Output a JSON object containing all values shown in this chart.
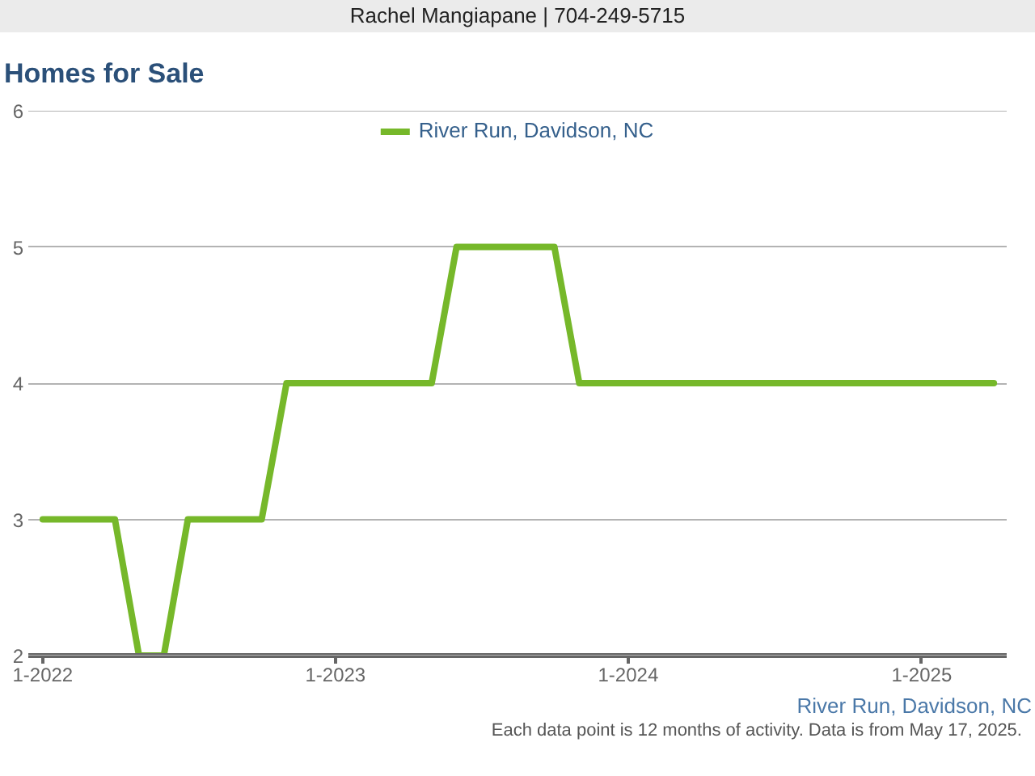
{
  "chart_data": {
    "type": "line",
    "title": "Homes for Sale",
    "annotations": [
      "Rachel Mangiapane | 704-249-5715",
      "River Run, Davidson, NC",
      "Each data point is 12 months of activity. Data is from May 17, 2025."
    ],
    "x": [
      "2022-01",
      "2022-02",
      "2022-03",
      "2022-04",
      "2022-05",
      "2022-06",
      "2022-07",
      "2022-08",
      "2022-09",
      "2022-10",
      "2022-11",
      "2022-12",
      "2023-01",
      "2023-02",
      "2023-03",
      "2023-04",
      "2023-05",
      "2023-06",
      "2023-07",
      "2023-08",
      "2023-09",
      "2023-10",
      "2023-11",
      "2023-12",
      "2024-01",
      "2024-02",
      "2024-03",
      "2024-04",
      "2024-05",
      "2024-06",
      "2024-07",
      "2024-08",
      "2024-09",
      "2024-10",
      "2024-11",
      "2024-12",
      "2025-01",
      "2025-02",
      "2025-03",
      "2025-04"
    ],
    "series": [
      {
        "name": "River Run, Davidson, NC",
        "color": "#76b82a",
        "values": [
          3,
          3,
          3,
          3,
          2,
          2,
          3,
          3,
          3,
          3,
          4,
          4,
          4,
          4,
          4,
          4,
          4,
          5,
          5,
          5,
          5,
          5,
          4,
          4,
          4,
          4,
          4,
          4,
          4,
          4,
          4,
          4,
          4,
          4,
          4,
          4,
          4,
          4,
          4,
          4
        ]
      }
    ],
    "xlim": [
      "2021-12-14",
      "2025-04-17"
    ],
    "xticks": [
      {
        "value": "2022-01",
        "label": "1-2022"
      },
      {
        "value": "2023-01",
        "label": "1-2023"
      },
      {
        "value": "2024-01",
        "label": "1-2024"
      },
      {
        "value": "2025-01",
        "label": "1-2025"
      }
    ],
    "ylim": [
      2,
      6
    ],
    "yticks": [
      2,
      3,
      4,
      5,
      6
    ],
    "grid": "y",
    "legend": "top",
    "line_style": "solid"
  }
}
